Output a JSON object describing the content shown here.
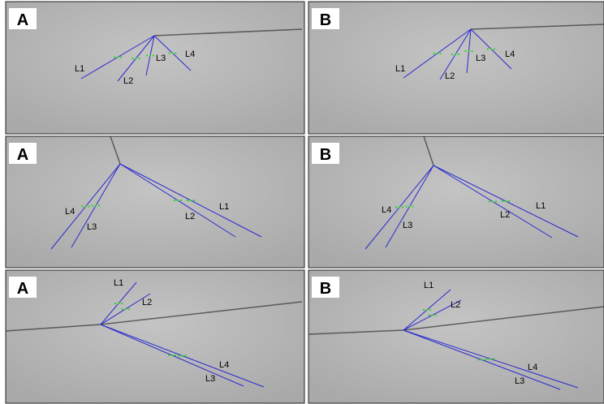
{
  "panels": [
    {
      "tag": "A",
      "lines": [
        "L1",
        "L2",
        "L3",
        "L4"
      ]
    },
    {
      "tag": "B",
      "lines": [
        "L1",
        "L2",
        "L3",
        "L4"
      ]
    },
    {
      "tag": "A",
      "lines": [
        "L4",
        "L3",
        "L2",
        "L1"
      ]
    },
    {
      "tag": "B",
      "lines": [
        "L4",
        "L3",
        "L2",
        "L1"
      ]
    },
    {
      "tag": "A",
      "lines": [
        "L1",
        "L2",
        "L4",
        "L3"
      ]
    },
    {
      "tag": "B",
      "lines": [
        "L1",
        "L2",
        "L4",
        "L3"
      ]
    }
  ]
}
